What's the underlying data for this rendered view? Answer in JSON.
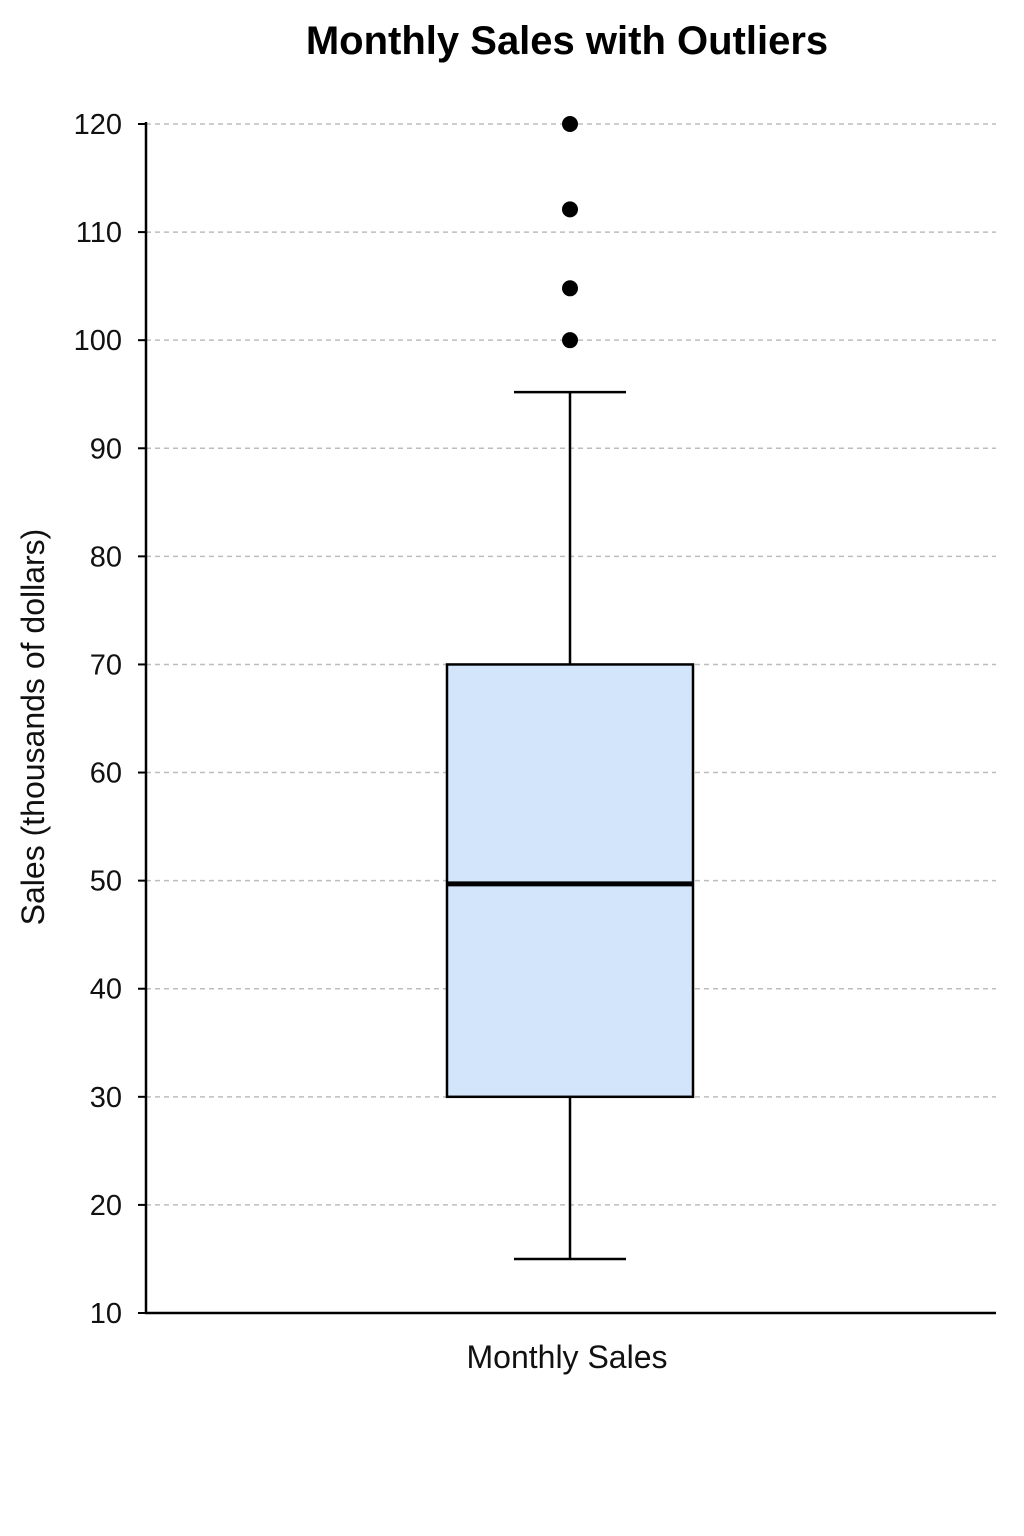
{
  "chart_data": {
    "type": "box",
    "title": "Monthly Sales with Outliers",
    "xlabel": "",
    "ylabel": "Sales (thousands of dollars)",
    "categories": [
      "Monthly Sales"
    ],
    "ylim": [
      10,
      120
    ],
    "yticks": [
      10,
      20,
      30,
      40,
      50,
      60,
      70,
      80,
      90,
      100,
      110,
      120
    ],
    "grid": true,
    "series": [
      {
        "category": "Monthly Sales",
        "whisker_low": 15,
        "q1": 30,
        "median": 49.7,
        "q3": 70,
        "whisker_high": 95.2,
        "outliers": [
          100,
          104.8,
          112.1,
          120
        ]
      }
    ],
    "colors": {
      "box_fill": "#d3e5fb",
      "stroke": "#000000",
      "grid": "#bdbdbd",
      "outlier": "#000000"
    }
  }
}
